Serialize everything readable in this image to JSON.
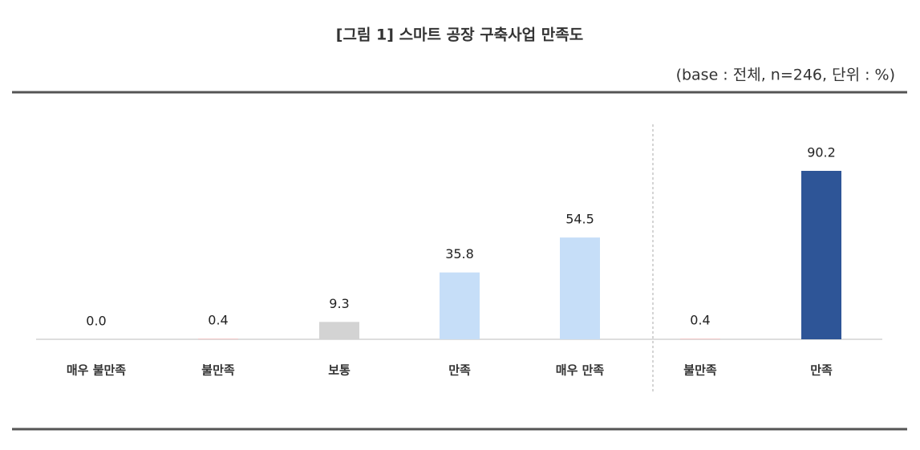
{
  "chart_data": {
    "type": "bar",
    "title": "[그림 1] 스마트 공장 구축사업 만족도",
    "subtitle": "(base : 전체, n=246, 단위 : %)",
    "categories": [
      "매우 불만족",
      "불만족",
      "보통",
      "만족",
      "매우 만족",
      "불만족",
      "만족"
    ],
    "values": [
      0.0,
      0.4,
      9.3,
      35.8,
      54.5,
      0.4,
      90.2
    ],
    "value_labels": [
      "0.0",
      "0.4",
      "9.3",
      "35.8",
      "54.5",
      "0.4",
      "90.2"
    ],
    "colors": [
      "#f2c4c4",
      "#f2c4c4",
      "#d3d3d3",
      "#c6def8",
      "#c6def8",
      "#f2c4c4",
      "#2e5597"
    ]
  }
}
